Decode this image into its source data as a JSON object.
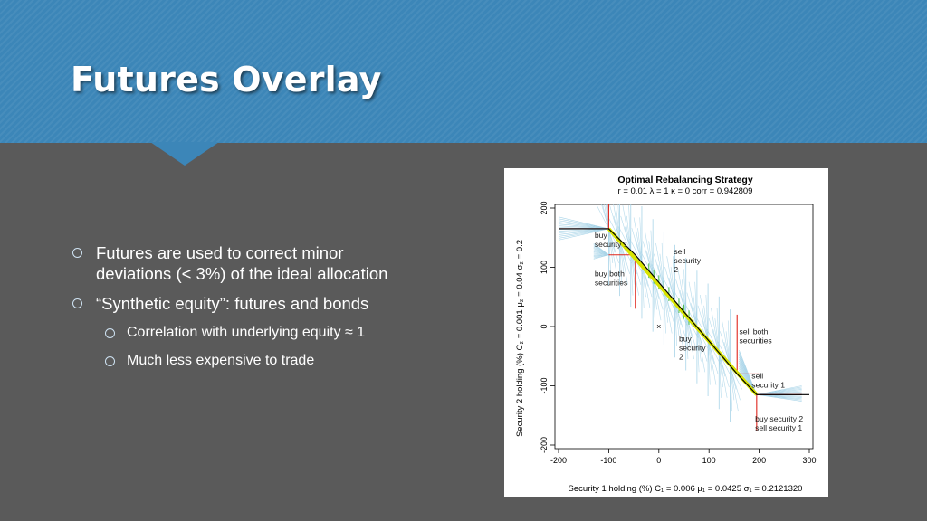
{
  "slide": {
    "title": "Futures Overlay",
    "bullets": [
      {
        "text": "Futures are used to correct minor",
        "text2": "deviations (< 3%) of the ideal allocation"
      },
      {
        "text": "“Synthetic equity”: futures and bonds"
      }
    ],
    "subbullets": [
      {
        "text": "Correlation with underlying equity ≈ 1"
      },
      {
        "text": "Much less expensive to trade"
      }
    ]
  },
  "chart_data": {
    "type": "line",
    "title": "Optimal Rebalancing Strategy",
    "subtitle": "r = 0.01    λ = 1    κ = 0    corr = 0.942809",
    "xlabel": "Security 1 holding (%)      C₁ = 0.006   μ₁ = 0.0425   σ₁ = 0.2121320",
    "ylabel": "Security 2 holding (%)   C₂ = 0.001   μ₂ = 0.04   σ₂ = 0.2",
    "xlim": [
      -200,
      300
    ],
    "ylim": [
      -200,
      200
    ],
    "xticks": [
      "-200",
      "-100",
      "0",
      "100",
      "200",
      "300"
    ],
    "yticks": [
      "-200",
      "-100",
      "0",
      "100",
      "200"
    ],
    "x": [
      -200,
      -100,
      -47,
      156,
      195,
      300
    ],
    "series": [
      {
        "values": [
          165,
          165,
          121,
          -80,
          -115,
          -115
        ],
        "color": "#000000"
      }
    ],
    "red_segments": [
      [
        [
          -200,
          165
        ],
        [
          -100,
          165
        ]
      ],
      [
        [
          -100,
          165
        ],
        [
          -100,
          250
        ]
      ],
      [
        [
          -100,
          121
        ],
        [
          -47,
          121
        ]
      ],
      [
        [
          -47,
          121
        ],
        [
          -47,
          30
        ]
      ],
      [
        [
          156,
          -80
        ],
        [
          156,
          20
        ]
      ],
      [
        [
          156,
          -80
        ],
        [
          200,
          -80
        ]
      ],
      [
        [
          195,
          -115
        ],
        [
          195,
          -175
        ]
      ],
      [
        [
          195,
          -115
        ],
        [
          285,
          -115
        ]
      ]
    ],
    "marker": {
      "x": 0,
      "y": 0,
      "symbol": "×"
    },
    "annotations": [
      {
        "lines": [
          "buy security 1",
          "sell security 2"
        ],
        "x": -200,
        "y": 225
      },
      {
        "lines": [
          "buy",
          "security 1"
        ],
        "x": -128,
        "y": 150
      },
      {
        "lines": [
          "sell",
          "security",
          "2"
        ],
        "x": 30,
        "y": 122
      },
      {
        "lines": [
          "buy both",
          "securities"
        ],
        "x": -128,
        "y": 85
      },
      {
        "lines": [
          "sell both",
          "securities"
        ],
        "x": 160,
        "y": -13
      },
      {
        "lines": [
          "buy",
          "security",
          "2"
        ],
        "x": 40,
        "y": -25
      },
      {
        "lines": [
          "sell",
          "security 1"
        ],
        "x": 185,
        "y": -88
      },
      {
        "lines": [
          "buy security 2",
          "sell security 1"
        ],
        "x": 192,
        "y": -160
      }
    ],
    "colors": {
      "optimal_line": "#000000",
      "trade_lines": "#a8d4e8",
      "boundary": "#e0261c",
      "highlight": "#d8e400",
      "green": "#55c05a"
    }
  }
}
